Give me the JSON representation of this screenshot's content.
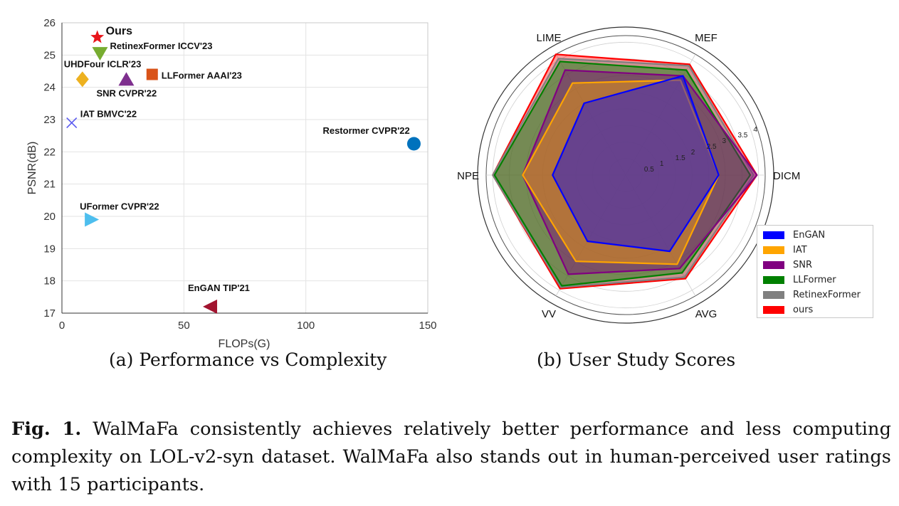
{
  "figure_label": "Fig. 1.",
  "caption_text": "WalMaFa consistently achieves relatively better performance and less computing complexity on LOL-v2-syn dataset. WalMaFa also stands out in human-perceived user ratings with 15 participants.",
  "subcaption_a": "(a) Performance vs Complexity",
  "subcaption_b": "(b) User Study Scores",
  "chart_data": [
    {
      "type": "scatter",
      "title": "",
      "xlabel": "FLOPs(G)",
      "ylabel": "PSNR(dB)",
      "xlim": [
        0,
        150
      ],
      "ylim": [
        17,
        26
      ],
      "xticks": [
        0,
        50,
        100,
        150
      ],
      "yticks": [
        17,
        18,
        19,
        20,
        21,
        22,
        23,
        24,
        25,
        26
      ],
      "grid": true,
      "points": [
        {
          "label": "Ours",
          "x": 14.5,
          "y": 25.55,
          "marker": "star",
          "color": "#e8161b"
        },
        {
          "label": "RetinexFormer ICCV'23",
          "x": 15.6,
          "y": 25.05,
          "marker": "triangle-down",
          "color": "#77ac30"
        },
        {
          "label": "UHDFour ICLR'23",
          "x": 8.4,
          "y": 24.25,
          "marker": "diamond",
          "color": "#edb120"
        },
        {
          "label": "SNR CVPR'22",
          "x": 26.4,
          "y": 24.25,
          "marker": "triangle-up",
          "color": "#7e2f8e"
        },
        {
          "label": "LLFormer AAAI'23",
          "x": 37.0,
          "y": 24.4,
          "marker": "square",
          "color": "#d95319"
        },
        {
          "label": "IAT BMVC'22",
          "x": 4.0,
          "y": 22.9,
          "marker": "x",
          "color": "#5a5af0"
        },
        {
          "label": "Restormer CVPR'22",
          "x": 144.3,
          "y": 22.25,
          "marker": "circle",
          "color": "#0072bd"
        },
        {
          "label": "UFormer CVPR'22",
          "x": 12.0,
          "y": 19.9,
          "marker": "triangle-right",
          "color": "#4dbeee"
        },
        {
          "label": "EnGAN TIP'21",
          "x": 61.0,
          "y": 17.2,
          "marker": "triangle-left",
          "color": "#a2142f"
        }
      ]
    },
    {
      "type": "radar",
      "title": "",
      "axes": [
        "DICM",
        "MEF",
        "LIME",
        "NPE",
        "VV",
        "AVG"
      ],
      "rmax": 4.2,
      "rings": [
        0.5,
        1,
        1.5,
        2,
        2.5,
        3,
        3.5,
        4
      ],
      "ring_labels": [
        "0.5",
        "1",
        "1.5",
        "2",
        "2.5",
        "3",
        "3.5",
        "4"
      ],
      "legend_position": "bottom-right",
      "series": [
        {
          "name": "EnGAN",
          "values": [
            2.8,
            3.45,
            2.5,
            2.2,
            2.3,
            2.65
          ],
          "color": "#0000ff"
        },
        {
          "name": "IAT",
          "values": [
            2.8,
            3.3,
            3.2,
            3.1,
            3.0,
            3.1
          ],
          "color": "#ffa500"
        },
        {
          "name": "SNR",
          "values": [
            3.95,
            3.45,
            3.65,
            3.1,
            3.45,
            3.25
          ],
          "color": "#800080"
        },
        {
          "name": "LLFormer",
          "values": [
            3.75,
            3.65,
            3.95,
            3.95,
            3.85,
            3.4
          ],
          "color": "#008000"
        },
        {
          "name": "RetinexFormer",
          "values": [
            3.85,
            3.8,
            4.05,
            4.0,
            3.9,
            3.55
          ],
          "color": "#808080"
        },
        {
          "name": "ours",
          "values": [
            3.95,
            3.85,
            4.2,
            4.0,
            3.95,
            3.6
          ],
          "color": "#ff0000"
        }
      ]
    }
  ]
}
